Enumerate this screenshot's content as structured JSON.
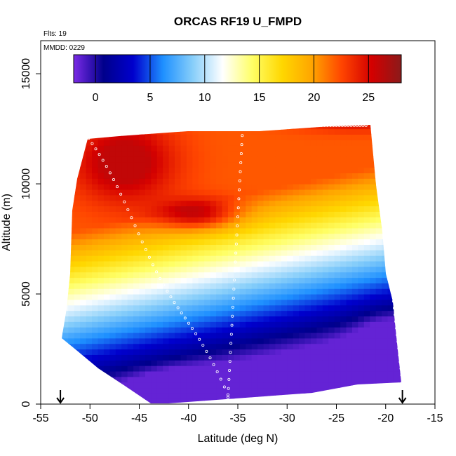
{
  "chart_data": {
    "type": "heatmap",
    "title": "ORCAS RF19 U_FMPD",
    "xlabel": "Latitude (deg N)",
    "ylabel": "Altitude (m)",
    "xlim": [
      -55,
      -15
    ],
    "ylim": [
      0,
      16500
    ],
    "x_ticks": [
      -55,
      -50,
      -45,
      -40,
      -35,
      -30,
      -25,
      -20,
      -15
    ],
    "y_ticks": [
      0,
      5000,
      10000,
      15000
    ],
    "notes": [
      "Flts: 19",
      "MMDD: 0229"
    ],
    "colorbar": {
      "range": [
        -2,
        28
      ],
      "ticks": [
        0,
        5,
        10,
        15,
        20,
        25
      ],
      "colors": [
        "#7b2be6",
        "#00008b",
        "#0000cd",
        "#1e90ff",
        "#87cefa",
        "#ffffff",
        "#ffff66",
        "#ffd700",
        "#ffa500",
        "#ff4500",
        "#d40000",
        "#8b1a1a"
      ]
    },
    "markers": [
      {
        "lat": -53,
        "alt": 0
      },
      {
        "lat": -18.3,
        "alt": 0
      }
    ],
    "field_description": {
      "lat_range": [
        -53,
        -18
      ],
      "alt_range": [
        0,
        13000
      ]
    }
  }
}
